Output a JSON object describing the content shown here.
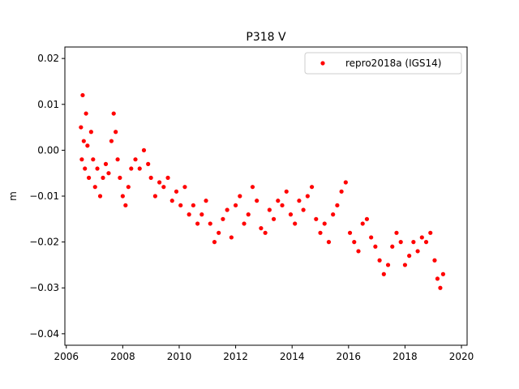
{
  "chart_data": {
    "type": "scatter",
    "title": "P318 V",
    "xlabel": "",
    "ylabel": "m",
    "xlim": [
      2005.95,
      2020.2
    ],
    "ylim": [
      -0.0425,
      0.0225
    ],
    "xticks": [
      2006,
      2008,
      2010,
      2012,
      2014,
      2016,
      2018,
      2020
    ],
    "yticks": [
      -0.04,
      -0.03,
      -0.02,
      -0.01,
      0.0,
      0.01,
      0.02
    ],
    "xtick_labels": [
      "2006",
      "2008",
      "2010",
      "2012",
      "2014",
      "2016",
      "2018",
      "2020"
    ],
    "ytick_labels": [
      "−0.04",
      "−0.03",
      "−0.02",
      "−0.01",
      "0.00",
      "0.01",
      "0.02"
    ],
    "grid": false,
    "legend_position": "top-right",
    "series": [
      {
        "name": "repro2018a (IGS14)",
        "color": "#ff0000",
        "marker": "circle",
        "x": [
          2006.52,
          2006.55,
          2006.58,
          2006.62,
          2006.66,
          2006.7,
          2006.75,
          2006.8,
          2006.88,
          2006.95,
          2007.02,
          2007.1,
          2007.2,
          2007.3,
          2007.4,
          2007.5,
          2007.6,
          2007.68,
          2007.75,
          2007.82,
          2007.9,
          2008.0,
          2008.1,
          2008.2,
          2008.3,
          2008.45,
          2008.6,
          2008.75,
          2008.9,
          2009.0,
          2009.15,
          2009.3,
          2009.45,
          2009.6,
          2009.75,
          2009.9,
          2010.05,
          2010.2,
          2010.35,
          2010.5,
          2010.65,
          2010.8,
          2010.95,
          2011.1,
          2011.25,
          2011.4,
          2011.55,
          2011.7,
          2011.85,
          2012.0,
          2012.15,
          2012.3,
          2012.45,
          2012.6,
          2012.75,
          2012.9,
          2013.05,
          2013.2,
          2013.35,
          2013.5,
          2013.65,
          2013.8,
          2013.95,
          2014.1,
          2014.25,
          2014.4,
          2014.55,
          2014.7,
          2014.85,
          2015.0,
          2015.15,
          2015.3,
          2015.45,
          2015.6,
          2015.75,
          2015.9,
          2016.05,
          2016.2,
          2016.35,
          2016.5,
          2016.65,
          2016.8,
          2016.95,
          2017.1,
          2017.25,
          2017.4,
          2017.55,
          2017.7,
          2017.85,
          2018.0,
          2018.15,
          2018.3,
          2018.45,
          2018.6,
          2018.75,
          2018.9,
          2019.05,
          2019.15,
          2019.25,
          2019.35
        ],
        "y": [
          0.005,
          -0.002,
          0.012,
          0.002,
          -0.004,
          0.008,
          0.001,
          -0.006,
          0.004,
          -0.002,
          -0.008,
          -0.004,
          -0.01,
          -0.006,
          -0.003,
          -0.005,
          0.002,
          0.008,
          0.004,
          -0.002,
          -0.006,
          -0.01,
          -0.012,
          -0.008,
          -0.004,
          -0.002,
          -0.004,
          0.0,
          -0.003,
          -0.006,
          -0.01,
          -0.007,
          -0.008,
          -0.006,
          -0.011,
          -0.009,
          -0.012,
          -0.008,
          -0.014,
          -0.012,
          -0.016,
          -0.014,
          -0.011,
          -0.016,
          -0.02,
          -0.018,
          -0.015,
          -0.013,
          -0.019,
          -0.012,
          -0.01,
          -0.016,
          -0.014,
          -0.008,
          -0.011,
          -0.017,
          -0.018,
          -0.013,
          -0.015,
          -0.011,
          -0.012,
          -0.009,
          -0.014,
          -0.016,
          -0.011,
          -0.013,
          -0.01,
          -0.008,
          -0.015,
          -0.018,
          -0.016,
          -0.02,
          -0.014,
          -0.012,
          -0.009,
          -0.007,
          -0.018,
          -0.02,
          -0.022,
          -0.016,
          -0.015,
          -0.019,
          -0.021,
          -0.024,
          -0.027,
          -0.025,
          -0.021,
          -0.018,
          -0.02,
          -0.025,
          -0.023,
          -0.02,
          -0.022,
          -0.019,
          -0.02,
          -0.018,
          -0.024,
          -0.028,
          -0.03,
          -0.027
        ]
      }
    ]
  }
}
